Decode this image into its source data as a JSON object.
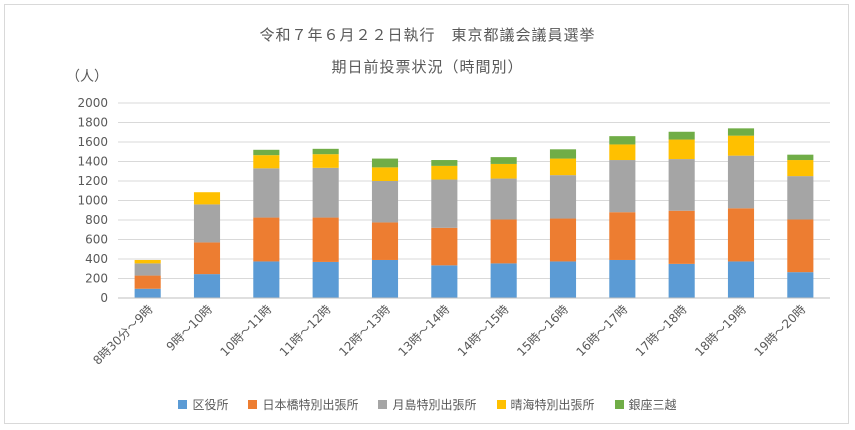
{
  "chart_data": {
    "type": "bar",
    "stacked": true,
    "title": "令和７年６月２２日執行　東京都議会議員選挙",
    "subtitle": "期日前投票状況（時間別）",
    "ylabel": "（人）",
    "ylim": [
      0,
      2000
    ],
    "yticks": [
      0,
      200,
      400,
      600,
      800,
      1000,
      1200,
      1400,
      1600,
      1800,
      2000
    ],
    "grid": true,
    "legend_position": "bottom",
    "categories": [
      "8時30分～9時",
      "9時～10時",
      "10時～11時",
      "11時～12時",
      "12時～13時",
      "13時～14時",
      "14時～15時",
      "15時～16時",
      "16時～17時",
      "17時～18時",
      "18時～19時",
      "19時～20時"
    ],
    "series": [
      {
        "name": "区役所",
        "color": "#5b9bd5",
        "values": [
          95,
          245,
          375,
          370,
          390,
          335,
          355,
          375,
          390,
          350,
          375,
          265
        ]
      },
      {
        "name": "日本橋特別出張所",
        "color": "#ed7d31",
        "values": [
          135,
          325,
          450,
          455,
          385,
          385,
          450,
          440,
          490,
          545,
          545,
          540
        ]
      },
      {
        "name": "月島特別出張所",
        "color": "#a5a5a5",
        "values": [
          125,
          390,
          505,
          510,
          425,
          495,
          420,
          445,
          535,
          530,
          540,
          445
        ]
      },
      {
        "name": "晴海特別出張所",
        "color": "#ffc000",
        "values": [
          35,
          125,
          135,
          140,
          140,
          140,
          150,
          170,
          160,
          200,
          205,
          165
        ]
      },
      {
        "name": "銀座三越",
        "color": "#70ad47",
        "values": [
          0,
          0,
          55,
          55,
          90,
          60,
          70,
          95,
          85,
          80,
          75,
          55
        ]
      }
    ]
  }
}
